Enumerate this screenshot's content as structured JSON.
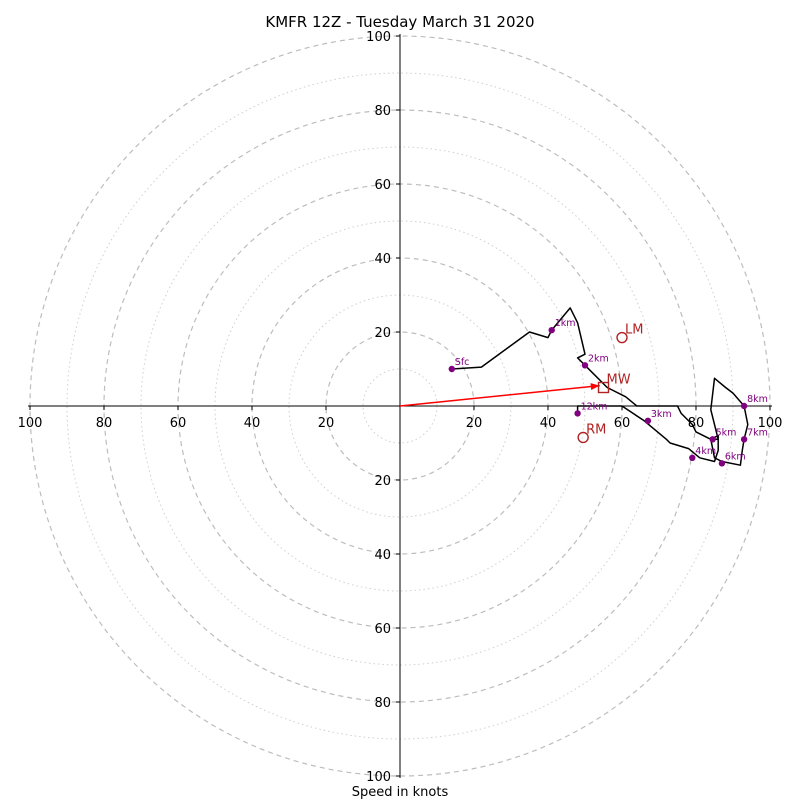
{
  "chart_data": {
    "type": "line",
    "title": "KMFR 12Z - Tuesday March 31 2020",
    "xlabel": "Speed in knots",
    "xlim": [
      -100,
      100
    ],
    "ylim": [
      -100,
      100
    ],
    "grid": true,
    "tick_labels": [
      "20",
      "40",
      "60",
      "80",
      "100"
    ],
    "ticks": [
      20,
      40,
      60,
      80,
      100
    ],
    "rings_dashed": [
      20,
      40,
      60,
      80,
      100
    ],
    "rings_dotted": [
      10,
      30,
      50,
      70,
      90
    ],
    "hodograph": {
      "name": "hodograph",
      "color": "#000000",
      "points": [
        [
          14,
          10
        ],
        [
          22,
          10.5
        ],
        [
          35,
          20
        ],
        [
          40,
          18.5
        ],
        [
          41,
          20.5
        ],
        [
          46,
          26.5
        ],
        [
          48,
          22.5
        ],
        [
          50,
          14
        ],
        [
          48,
          13
        ],
        [
          50,
          11
        ],
        [
          52,
          9
        ],
        [
          56,
          5
        ],
        [
          61,
          2.5
        ],
        [
          64,
          0
        ],
        [
          75,
          0
        ],
        [
          76,
          -2
        ],
        [
          79,
          -5
        ],
        [
          80,
          -7
        ],
        [
          84,
          -9
        ],
        [
          86,
          -9
        ],
        [
          84,
          -1
        ],
        [
          85,
          7.5
        ],
        [
          88,
          5
        ],
        [
          90,
          3.5
        ],
        [
          93,
          0
        ],
        [
          94,
          -5
        ],
        [
          93,
          -9
        ],
        [
          92.5,
          -12
        ],
        [
          92,
          -16
        ],
        [
          87,
          -15
        ],
        [
          85,
          -14
        ],
        [
          84,
          -9
        ],
        [
          86,
          -8
        ],
        [
          86,
          -12
        ],
        [
          85,
          -15
        ],
        [
          81,
          -14
        ],
        [
          78,
          -11.5
        ],
        [
          73,
          -10
        ],
        [
          72,
          -9
        ],
        [
          66,
          -4
        ],
        [
          63,
          -2
        ],
        [
          60,
          0
        ],
        [
          48,
          0
        ],
        [
          48,
          -2
        ]
      ]
    },
    "height_markers": {
      "color": "#800080",
      "points": [
        {
          "label": "Sfc",
          "x": 14,
          "y": 10
        },
        {
          "label": "1km",
          "x": 41,
          "y": 20.5
        },
        {
          "label": "2km",
          "x": 50,
          "y": 11
        },
        {
          "label": "3km",
          "x": 67,
          "y": -4
        },
        {
          "label": "4km",
          "x": 79,
          "y": -14
        },
        {
          "label": "5km",
          "x": 84.5,
          "y": -9
        },
        {
          "label": "6km",
          "x": 87,
          "y": -15.5
        },
        {
          "label": "7km",
          "x": 93,
          "y": -9
        },
        {
          "label": "8km",
          "x": 93,
          "y": 0
        },
        {
          "label": "12km",
          "x": 48,
          "y": -2
        }
      ]
    },
    "storm_motion": {
      "color": "#b22222",
      "markers": [
        {
          "label": "LM",
          "x": 60,
          "y": 18.5,
          "shape": "circle"
        },
        {
          "label": "MW",
          "x": 55,
          "y": 5,
          "shape": "square"
        },
        {
          "label": "RM",
          "x": 49.5,
          "y": -8.5,
          "shape": "circle"
        }
      ],
      "arrow": {
        "from": [
          0,
          0
        ],
        "to": [
          54,
          5.5
        ],
        "color": "#ff0000"
      }
    }
  }
}
